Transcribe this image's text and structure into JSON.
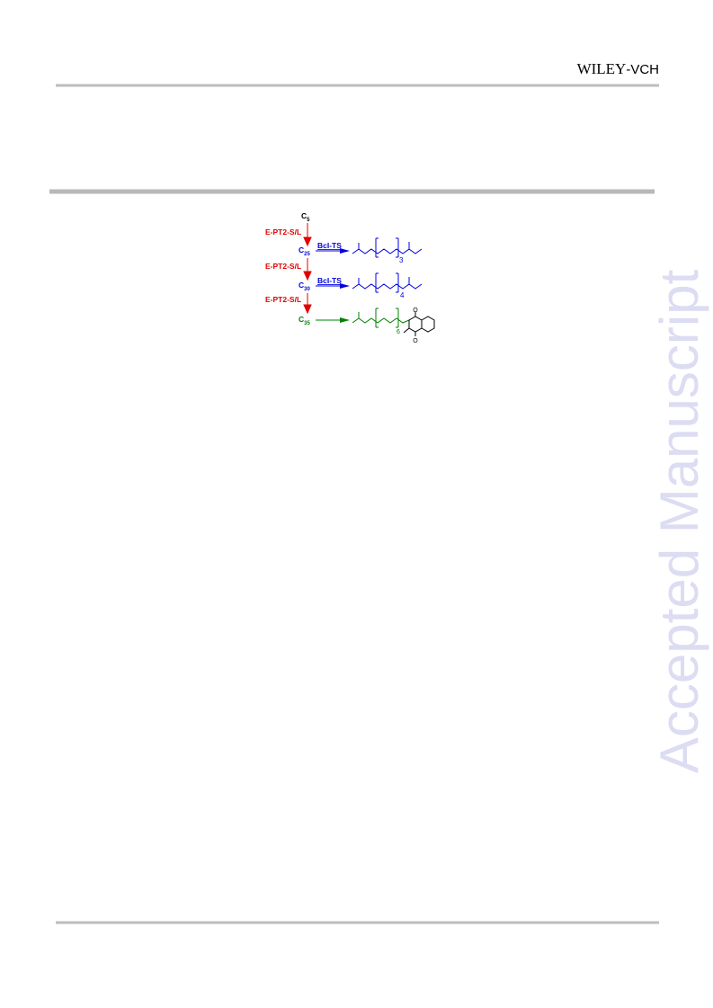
{
  "header": {
    "publisher": "WILEY",
    "publisher_suffix": "-VCH"
  },
  "watermark": "Accepted Manuscript",
  "scheme": {
    "nodes": [
      {
        "symbol": "C",
        "subscript": "5"
      },
      {
        "symbol": "C",
        "subscript": "25"
      },
      {
        "symbol": "C",
        "subscript": "30"
      },
      {
        "symbol": "C",
        "subscript": "35"
      }
    ],
    "steps": [
      "E-PT2-S/L",
      "E-PT2-S/L",
      "E-PT2-S/L"
    ],
    "reagents": [
      "BcI-TS",
      "BcI-TS"
    ],
    "repeat_counts": [
      "3",
      "4",
      "6"
    ],
    "oxygen_labels": [
      "O",
      "O"
    ]
  }
}
